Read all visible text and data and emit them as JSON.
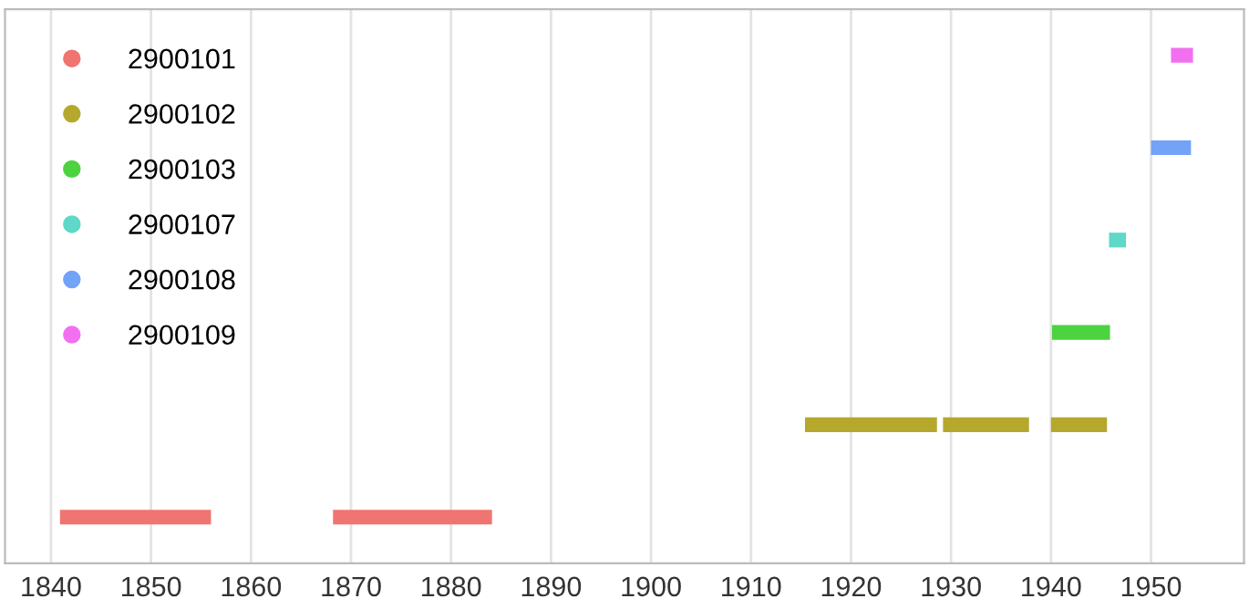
{
  "chart_data": {
    "type": "bar",
    "orientation": "horizontal",
    "categories": [
      null,
      null,
      null,
      null,
      null,
      null
    ],
    "xlim": [
      1835.4,
      1959.3
    ],
    "xticks": [
      1840,
      1850,
      1860,
      1870,
      1880,
      1890,
      1900,
      1910,
      1920,
      1930,
      1940,
      1950
    ],
    "grid": "x",
    "legend": "top left",
    "series": [
      {
        "name": "2900101",
        "color": "#f07470",
        "base": [
          null,
          null,
          null,
          null,
          null,
          1840.9
        ],
        "values": [
          null,
          null,
          null,
          null,
          null,
          15.1
        ]
      },
      {
        "color": "#f07470",
        "base": [
          null,
          null,
          null,
          null,
          null,
          1868.2
        ],
        "values": [
          null,
          null,
          null,
          null,
          null,
          15.9
        ]
      },
      {
        "name": "2900102",
        "color": "#b5a82d",
        "base": [
          null,
          null,
          null,
          null,
          1915.4,
          null
        ],
        "values": [
          null,
          null,
          null,
          null,
          13.2,
          null
        ]
      },
      {
        "color": "#b5a82d",
        "base": [
          null,
          null,
          null,
          null,
          1929.2,
          null
        ],
        "values": [
          null,
          null,
          null,
          null,
          8.6,
          null
        ]
      },
      {
        "color": "#b5a82d",
        "base": [
          null,
          null,
          null,
          null,
          1940.0,
          null
        ],
        "values": [
          null,
          null,
          null,
          null,
          5.6,
          null
        ]
      },
      {
        "name": "2900103",
        "color": "#4dd240",
        "base": [
          null,
          null,
          null,
          1940.1,
          null,
          null
        ],
        "values": [
          null,
          null,
          null,
          5.8,
          null,
          null
        ]
      },
      {
        "name": "2900107",
        "color": "#5fd8c8",
        "base": [
          null,
          null,
          1945.8,
          null,
          null,
          null
        ],
        "values": [
          null,
          null,
          1.7,
          null,
          null,
          null
        ]
      },
      {
        "name": "2900108",
        "color": "#72a3f7",
        "base": [
          null,
          1950.0,
          null,
          null,
          null,
          null
        ],
        "values": [
          null,
          4.0,
          null,
          null,
          null,
          null
        ]
      },
      {
        "name": "2900109",
        "color": "#f270f0",
        "base": [
          1952.0,
          null,
          null,
          null,
          null,
          null
        ],
        "values": [
          2.2,
          null,
          null,
          null,
          null,
          null
        ]
      }
    ]
  }
}
